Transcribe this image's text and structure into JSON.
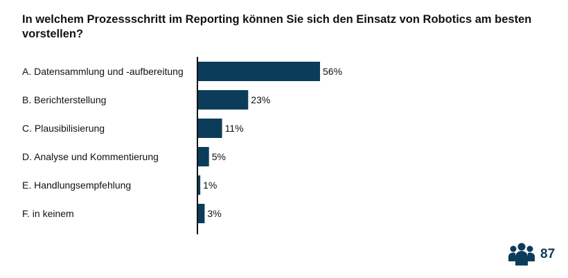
{
  "chart_data": {
    "type": "bar",
    "orientation": "horizontal",
    "title": "In welchem Prozessschritt im Reporting können Sie sich den Einsatz von Robotics am besten vorstellen?",
    "categories": [
      "A. Datensammlung und -aufbereitung",
      "B. Berichterstellung",
      "C. Plausibilisierung",
      "D. Analyse und Kommentierung",
      "E. Handlungsempfehlung",
      "F. in keinem"
    ],
    "values": [
      56,
      23,
      11,
      5,
      1,
      3
    ],
    "value_labels": [
      "56%",
      "23%",
      "11%",
      "5%",
      "1%",
      "3%"
    ],
    "unit": "%",
    "xlim": [
      0,
      100
    ],
    "grid": false,
    "bar_color": "#0b3d5a"
  },
  "respondents": {
    "icon": "users-group-icon",
    "count": "87",
    "color": "#0b3d5a"
  }
}
